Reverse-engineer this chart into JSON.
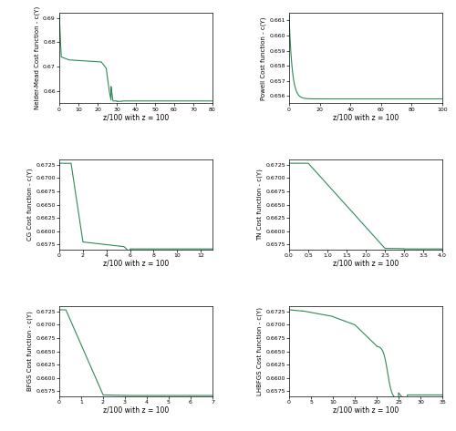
{
  "line_color": "#2e8b57",
  "line_width": 0.8,
  "background_color": "#ffffff",
  "xlabel": "z/100 with z = 100",
  "xlabel_fontsize": 5.5,
  "ylabel_fontsize": 5.0,
  "tick_fontsize": 4.5,
  "subplots": [
    {
      "ylabel": "Nelder-Mead Cost function - c(Y)",
      "xmin": 0,
      "xmax": 80,
      "ymin": 0.655,
      "ymax": 0.692,
      "shape": "nelder_mead"
    },
    {
      "ylabel": "Powell Cost function - c(Y)",
      "xmin": 0,
      "xmax": 100,
      "ymin": 0.6555,
      "ymax": 0.6615,
      "shape": "powell"
    },
    {
      "ylabel": "CG Cost function - c(Y)",
      "xmin": 0,
      "xmax": 13,
      "ymin": 0.6565,
      "ymax": 0.6735,
      "shape": "cg"
    },
    {
      "ylabel": "TN Cost function - c(Y)",
      "xmin": 0,
      "xmax": 4,
      "ymin": 0.6565,
      "ymax": 0.6735,
      "shape": "tn"
    },
    {
      "ylabel": "BFGS Cost function - c(Y)",
      "xmin": 0,
      "xmax": 7,
      "ymin": 0.6565,
      "ymax": 0.6735,
      "shape": "bfgs"
    },
    {
      "ylabel": "LHBFGS Cost function - c(Y)",
      "xmin": 0,
      "xmax": 35,
      "ymin": 0.6565,
      "ymax": 0.6735,
      "shape": "lhbfgs"
    }
  ]
}
